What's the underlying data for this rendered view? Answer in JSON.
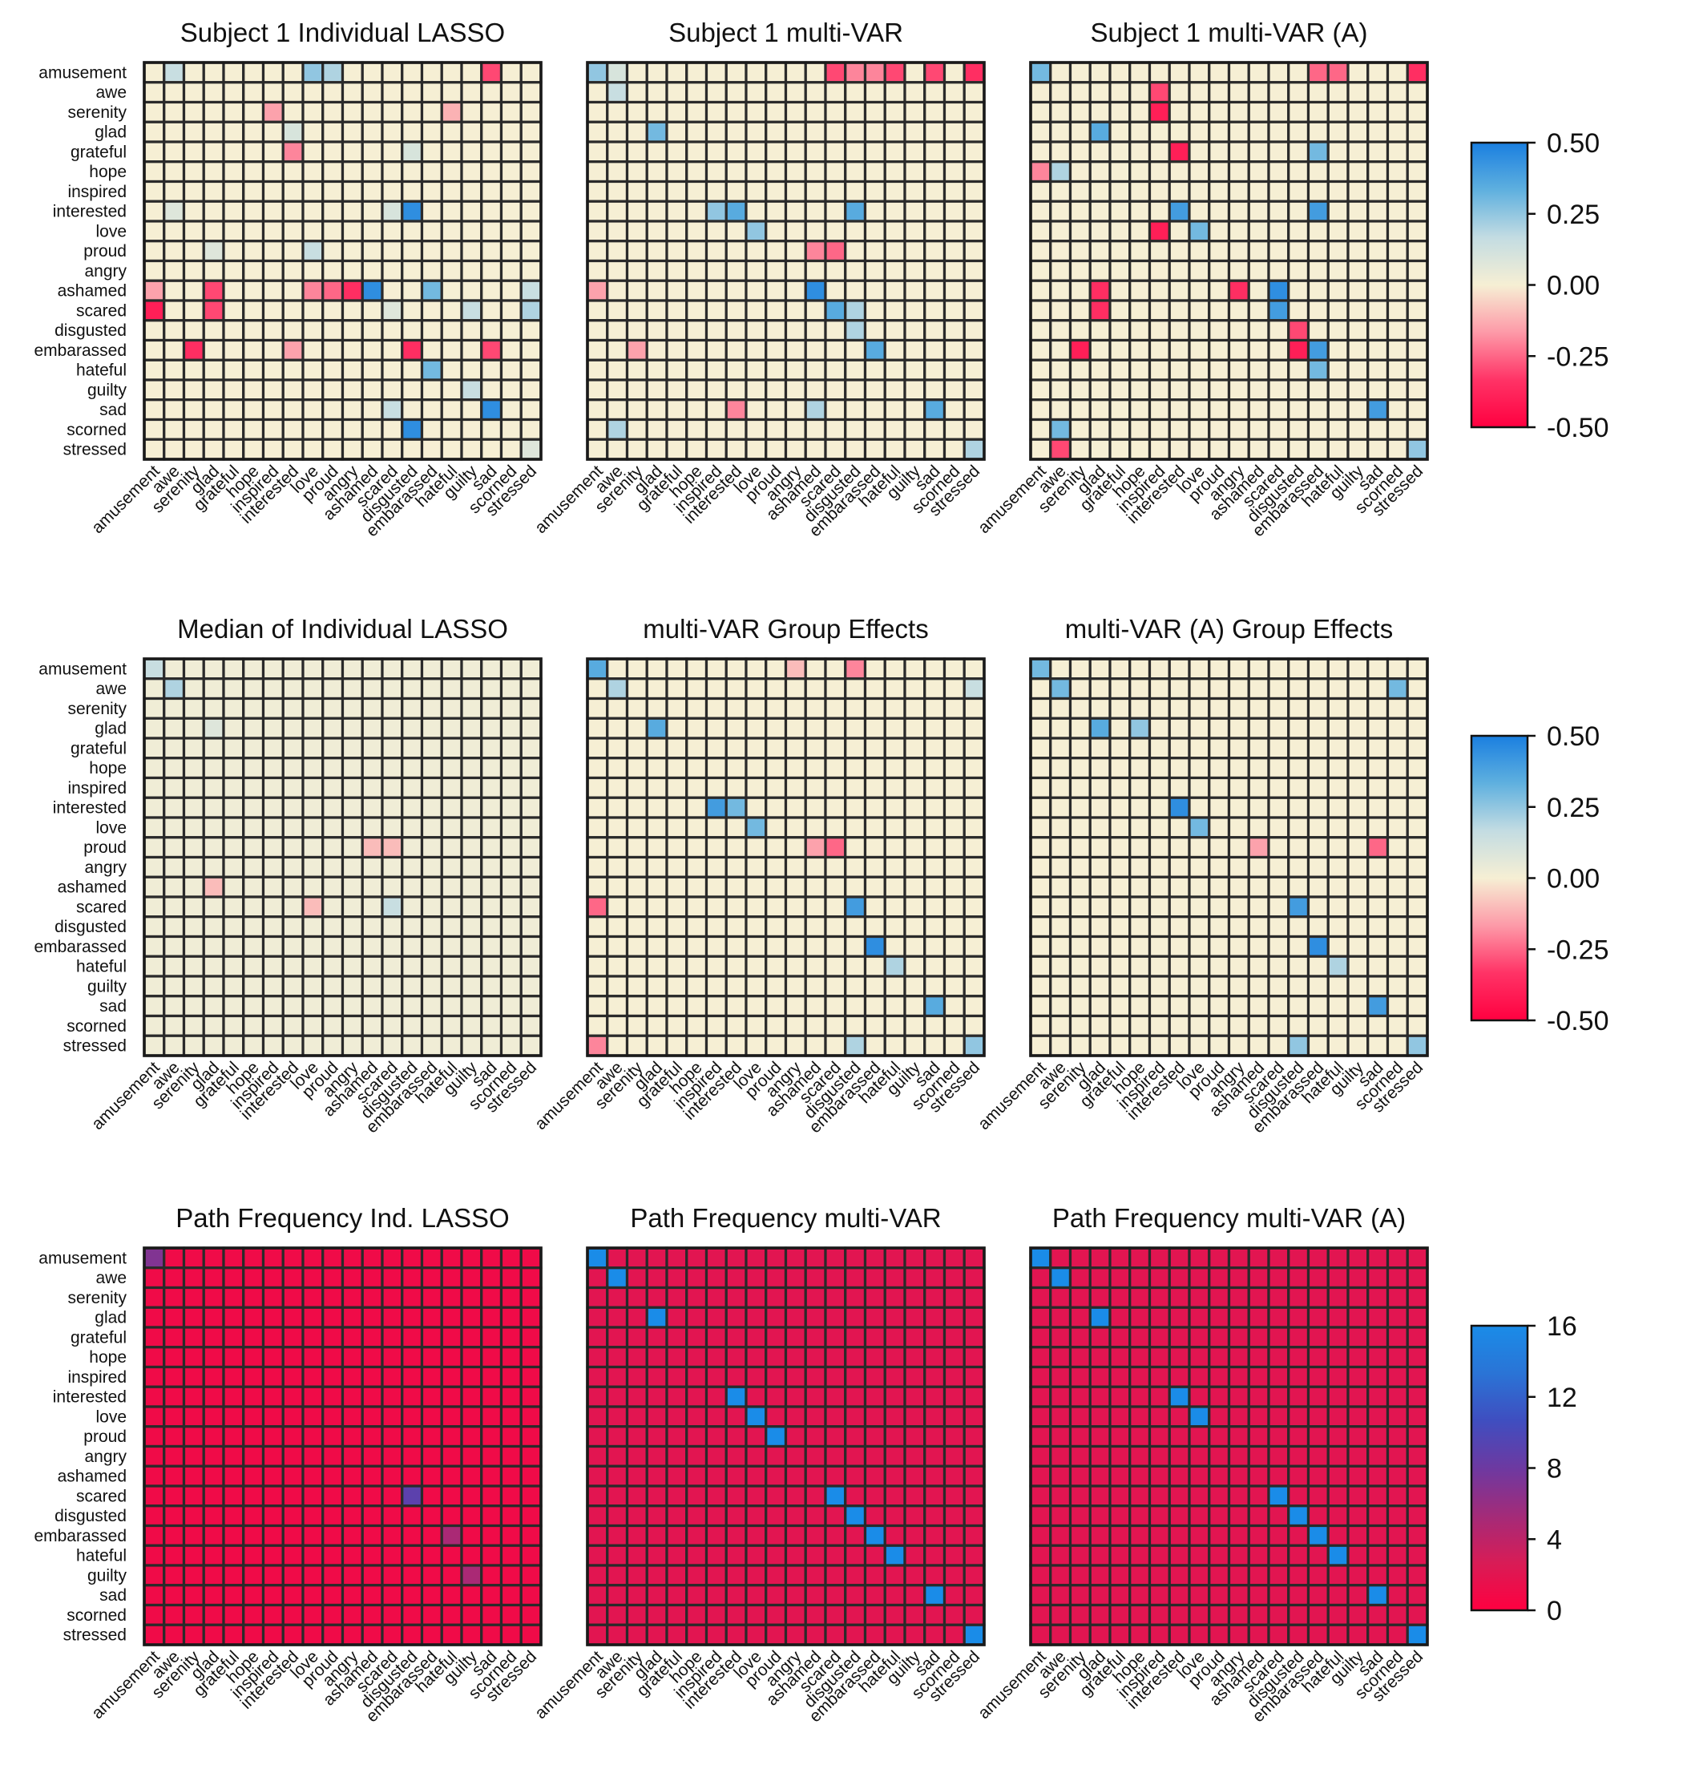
{
  "figure": {
    "emotions": [
      "amusement",
      "awe",
      "serenity",
      "glad",
      "grateful",
      "hope",
      "inspired",
      "interested",
      "love",
      "proud",
      "angry",
      "ashamed",
      "scared",
      "disgusted",
      "embarassed",
      "hateful",
      "guilty",
      "sad",
      "scorned",
      "stressed"
    ]
  },
  "colors": {
    "coef_scale": [
      "#ff0040",
      "#ff3366",
      "#fd9aa8",
      "#f6efd4",
      "#c3dce2",
      "#5fb0df",
      "#1a7fe0"
    ],
    "freq_scale": [
      "#ff0040",
      "#d81c56",
      "#a32b79",
      "#6d39a1",
      "#3f4ec0",
      "#2a74d6",
      "#1a8ce8"
    ],
    "grid": "#2a2a2a"
  },
  "colorbars": [
    {
      "type": "coefficient",
      "ticks": [
        "0.50",
        "0.25",
        "0.00",
        "-0.25",
        "-0.50"
      ]
    },
    {
      "type": "coefficient",
      "ticks": [
        "0.50",
        "0.25",
        "0.00",
        "-0.25",
        "-0.50"
      ]
    },
    {
      "type": "frequency",
      "ticks": [
        "16",
        "12",
        "8",
        "4",
        "0"
      ]
    }
  ],
  "chart_data": [
    {
      "type": "heatmap",
      "title": "Subject 1 Individual LASSO",
      "scale": "coefficient",
      "vmin": -0.5,
      "vmax": 0.5,
      "default": 0,
      "cells": [
        [
          "amusement",
          "awe",
          0.15
        ],
        [
          "amusement",
          "love",
          0.25
        ],
        [
          "amusement",
          "proud",
          0.2
        ],
        [
          "amusement",
          "sad",
          -0.3
        ],
        [
          "serenity",
          "inspired",
          -0.15
        ],
        [
          "serenity",
          "hateful",
          -0.12
        ],
        [
          "glad",
          "interested",
          0.1
        ],
        [
          "grateful",
          "interested",
          -0.2
        ],
        [
          "grateful",
          "disgusted",
          0.1
        ],
        [
          "interested",
          "disgusted",
          0.45
        ],
        [
          "interested",
          "scared",
          0.1
        ],
        [
          "interested",
          "awe",
          0.08
        ],
        [
          "proud",
          "love",
          0.15
        ],
        [
          "proud",
          "glad",
          0.08
        ],
        [
          "ashamed",
          "amusement",
          -0.15
        ],
        [
          "ashamed",
          "glad",
          -0.3
        ],
        [
          "ashamed",
          "angry",
          -0.35
        ],
        [
          "ashamed",
          "ashamed",
          0.45
        ],
        [
          "ashamed",
          "proud",
          -0.25
        ],
        [
          "ashamed",
          "embarassed",
          0.3
        ],
        [
          "ashamed",
          "love",
          -0.2
        ],
        [
          "ashamed",
          "stressed",
          0.15
        ],
        [
          "scared",
          "amusement",
          -0.4
        ],
        [
          "scared",
          "glad",
          -0.3
        ],
        [
          "scared",
          "scared",
          0.08
        ],
        [
          "scared",
          "guilty",
          0.15
        ],
        [
          "scared",
          "stressed",
          0.2
        ],
        [
          "embarassed",
          "serenity",
          -0.35
        ],
        [
          "embarassed",
          "disgusted",
          -0.35
        ],
        [
          "embarassed",
          "sad",
          -0.3
        ],
        [
          "embarassed",
          "interested",
          -0.15
        ],
        [
          "hateful",
          "embarassed",
          0.3
        ],
        [
          "guilty",
          "guilty",
          0.15
        ],
        [
          "sad",
          "scared",
          0.15
        ],
        [
          "sad",
          "sad",
          0.45
        ],
        [
          "scorned",
          "disgusted",
          0.45
        ],
        [
          "stressed",
          "stressed",
          0.08
        ]
      ]
    },
    {
      "type": "heatmap",
      "title": "Subject 1 multi-VAR",
      "scale": "coefficient",
      "vmin": -0.5,
      "vmax": 0.5,
      "default": 0,
      "cells": [
        [
          "amusement",
          "amusement",
          0.25
        ],
        [
          "amusement",
          "awe",
          0.1
        ],
        [
          "amusement",
          "scared",
          -0.3
        ],
        [
          "amusement",
          "disgusted",
          -0.2
        ],
        [
          "amusement",
          "embarassed",
          -0.2
        ],
        [
          "amusement",
          "hateful",
          -0.3
        ],
        [
          "amusement",
          "sad",
          -0.3
        ],
        [
          "amusement",
          "stressed",
          -0.35
        ],
        [
          "awe",
          "awe",
          0.15
        ],
        [
          "glad",
          "glad",
          0.3
        ],
        [
          "interested",
          "interested",
          0.35
        ],
        [
          "interested",
          "inspired",
          0.25
        ],
        [
          "interested",
          "disgusted",
          0.35
        ],
        [
          "love",
          "love",
          0.25
        ],
        [
          "proud",
          "ashamed",
          -0.2
        ],
        [
          "proud",
          "scared",
          -0.25
        ],
        [
          "ashamed",
          "ashamed",
          0.45
        ],
        [
          "ashamed",
          "amusement",
          -0.15
        ],
        [
          "scared",
          "scared",
          0.35
        ],
        [
          "scared",
          "disgusted",
          0.2
        ],
        [
          "disgusted",
          "disgusted",
          0.2
        ],
        [
          "embarassed",
          "embarassed",
          0.35
        ],
        [
          "embarassed",
          "serenity",
          -0.15
        ],
        [
          "sad",
          "ashamed",
          0.2
        ],
        [
          "sad",
          "sad",
          0.35
        ],
        [
          "sad",
          "interested",
          -0.2
        ],
        [
          "scorned",
          "awe",
          0.2
        ],
        [
          "stressed",
          "stressed",
          0.2
        ]
      ]
    },
    {
      "type": "heatmap",
      "title": "Subject 1 multi-VAR (A)",
      "scale": "coefficient",
      "vmin": -0.5,
      "vmax": 0.5,
      "default": 0,
      "cells": [
        [
          "amusement",
          "amusement",
          0.3
        ],
        [
          "amusement",
          "embarassed",
          -0.25
        ],
        [
          "amusement",
          "hateful",
          -0.25
        ],
        [
          "amusement",
          "stressed",
          -0.35
        ],
        [
          "awe",
          "inspired",
          -0.3
        ],
        [
          "serenity",
          "inspired",
          -0.4
        ],
        [
          "glad",
          "glad",
          0.35
        ],
        [
          "grateful",
          "interested",
          -0.4
        ],
        [
          "grateful",
          "embarassed",
          0.3
        ],
        [
          "hope",
          "amusement",
          -0.2
        ],
        [
          "hope",
          "awe",
          0.2
        ],
        [
          "interested",
          "interested",
          0.4
        ],
        [
          "interested",
          "embarassed",
          0.4
        ],
        [
          "love",
          "inspired",
          -0.4
        ],
        [
          "love",
          "love",
          0.3
        ],
        [
          "ashamed",
          "scared",
          0.45
        ],
        [
          "ashamed",
          "glad",
          -0.35
        ],
        [
          "ashamed",
          "angry",
          -0.35
        ],
        [
          "scared",
          "scared",
          0.4
        ],
        [
          "scared",
          "glad",
          -0.35
        ],
        [
          "disgusted",
          "disgusted",
          -0.3
        ],
        [
          "embarassed",
          "serenity",
          -0.4
        ],
        [
          "embarassed",
          "disgusted",
          -0.4
        ],
        [
          "embarassed",
          "embarassed",
          0.4
        ],
        [
          "hateful",
          "embarassed",
          0.3
        ],
        [
          "sad",
          "sad",
          0.4
        ],
        [
          "scorned",
          "awe",
          0.3
        ],
        [
          "stressed",
          "awe",
          -0.3
        ],
        [
          "stressed",
          "stressed",
          0.25
        ]
      ]
    },
    {
      "type": "heatmap",
      "title": "Median of Individual LASSO",
      "scale": "coefficient",
      "vmin": -0.5,
      "vmax": 0.5,
      "default": 0.02,
      "cells": [
        [
          "amusement",
          "amusement",
          0.15
        ],
        [
          "awe",
          "awe",
          0.2
        ],
        [
          "glad",
          "glad",
          0.08
        ],
        [
          "proud",
          "ashamed",
          -0.1
        ],
        [
          "proud",
          "scared",
          -0.1
        ],
        [
          "scared",
          "scared",
          0.15
        ],
        [
          "scared",
          "love",
          -0.1
        ],
        [
          "ashamed",
          "glad",
          -0.1
        ]
      ]
    },
    {
      "type": "heatmap",
      "title": "multi-VAR Group Effects",
      "scale": "coefficient",
      "vmin": -0.5,
      "vmax": 0.5,
      "default": 0,
      "cells": [
        [
          "amusement",
          "amusement",
          0.35
        ],
        [
          "amusement",
          "angry",
          -0.1
        ],
        [
          "amusement",
          "disgusted",
          -0.2
        ],
        [
          "awe",
          "awe",
          0.2
        ],
        [
          "awe",
          "stressed",
          0.15
        ],
        [
          "glad",
          "glad",
          0.35
        ],
        [
          "interested",
          "inspired",
          0.4
        ],
        [
          "interested",
          "interested",
          0.3
        ],
        [
          "love",
          "love",
          0.3
        ],
        [
          "proud",
          "ashamed",
          -0.15
        ],
        [
          "proud",
          "scared",
          -0.25
        ],
        [
          "scared",
          "disgusted",
          0.4
        ],
        [
          "scared",
          "amusement",
          -0.25
        ],
        [
          "embarassed",
          "embarassed",
          0.45
        ],
        [
          "hateful",
          "hateful",
          0.2
        ],
        [
          "sad",
          "sad",
          0.35
        ],
        [
          "stressed",
          "stressed",
          0.25
        ],
        [
          "stressed",
          "disgusted",
          0.2
        ],
        [
          "stressed",
          "amusement",
          -0.2
        ]
      ]
    },
    {
      "type": "heatmap",
      "title": "multi-VAR (A) Group Effects",
      "scale": "coefficient",
      "vmin": -0.5,
      "vmax": 0.5,
      "default": 0,
      "cells": [
        [
          "amusement",
          "amusement",
          0.3
        ],
        [
          "awe",
          "awe",
          0.3
        ],
        [
          "awe",
          "scorned",
          0.3
        ],
        [
          "glad",
          "glad",
          0.35
        ],
        [
          "glad",
          "hope",
          0.25
        ],
        [
          "interested",
          "interested",
          0.45
        ],
        [
          "love",
          "love",
          0.3
        ],
        [
          "proud",
          "sad",
          -0.25
        ],
        [
          "proud",
          "ashamed",
          -0.15
        ],
        [
          "scared",
          "disgusted",
          0.4
        ],
        [
          "embarassed",
          "embarassed",
          0.45
        ],
        [
          "hateful",
          "hateful",
          0.2
        ],
        [
          "sad",
          "sad",
          0.4
        ],
        [
          "stressed",
          "stressed",
          0.25
        ],
        [
          "stressed",
          "disgusted",
          0.25
        ]
      ]
    },
    {
      "type": "heatmap",
      "title": "Path Frequency Ind. LASSO",
      "scale": "frequency",
      "vmin": 0,
      "vmax": 16,
      "default": 1,
      "cells": [
        [
          "amusement",
          "amusement",
          7
        ],
        [
          "scared",
          "disgusted",
          9
        ],
        [
          "embarassed",
          "hateful",
          5
        ],
        [
          "guilty",
          "guilty",
          5
        ]
      ]
    },
    {
      "type": "heatmap",
      "title": "Path Frequency multi-VAR",
      "scale": "frequency",
      "vmin": 0,
      "vmax": 16,
      "default": 2,
      "cells": [
        [
          "amusement",
          "amusement",
          16
        ],
        [
          "awe",
          "awe",
          16
        ],
        [
          "glad",
          "glad",
          16
        ],
        [
          "interested",
          "interested",
          16
        ],
        [
          "love",
          "love",
          16
        ],
        [
          "proud",
          "proud",
          16
        ],
        [
          "scared",
          "scared",
          16
        ],
        [
          "disgusted",
          "disgusted",
          16
        ],
        [
          "embarassed",
          "embarassed",
          16
        ],
        [
          "hateful",
          "hateful",
          16
        ],
        [
          "sad",
          "sad",
          16
        ],
        [
          "stressed",
          "stressed",
          16
        ]
      ]
    },
    {
      "type": "heatmap",
      "title": "Path Frequency multi-VAR (A)",
      "scale": "frequency",
      "vmin": 0,
      "vmax": 16,
      "default": 2,
      "cells": [
        [
          "amusement",
          "amusement",
          16
        ],
        [
          "awe",
          "awe",
          16
        ],
        [
          "glad",
          "glad",
          16
        ],
        [
          "interested",
          "interested",
          16
        ],
        [
          "love",
          "love",
          16
        ],
        [
          "scared",
          "scared",
          16
        ],
        [
          "disgusted",
          "disgusted",
          16
        ],
        [
          "embarassed",
          "embarassed",
          16
        ],
        [
          "hateful",
          "hateful",
          16
        ],
        [
          "sad",
          "sad",
          16
        ],
        [
          "stressed",
          "stressed",
          16
        ]
      ]
    }
  ]
}
